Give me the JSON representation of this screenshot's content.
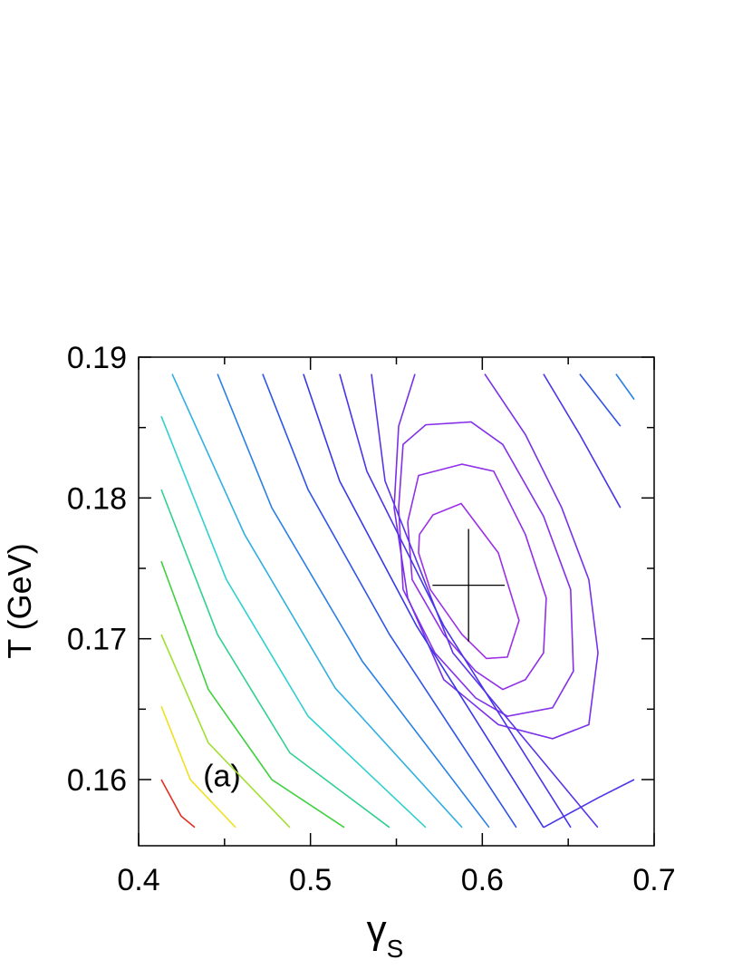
{
  "chart_data": {
    "type": "contour",
    "x_label": "γ",
    "x_label_subscript": "S",
    "y_label": "T (GeV)",
    "annotation": {
      "text": "(a)",
      "x": 0.4485,
      "y": 0.1603
    },
    "xlim": [
      0.4,
      0.7
    ],
    "ylim": [
      0.1553,
      0.19
    ],
    "xticks": [
      0.4,
      0.5,
      0.6,
      0.7
    ],
    "yticks": [
      0.16,
      0.17,
      0.18,
      0.19
    ],
    "xminor": [
      0.45,
      0.55,
      0.65
    ],
    "yminor": [
      0.165,
      0.175,
      0.185
    ],
    "best_fit": {
      "x": 0.592,
      "y": 0.1738,
      "x_err": 0.021,
      "y_err": 0.004,
      "color": "#000000"
    },
    "contours": [
      {
        "color": "#9b30e8",
        "x": [
          0.5634,
          0.5713,
          0.5877,
          0.6093,
          0.6214,
          0.6146,
          0.6024,
          0.5882,
          0.5697,
          0.5629,
          0.5634
        ],
        "y": [
          0.1774,
          0.1788,
          0.1796,
          0.1761,
          0.1713,
          0.1687,
          0.1686,
          0.1703,
          0.1735,
          0.1761,
          0.1774
        ]
      },
      {
        "color": "#9030e8",
        "x": [
          0.5566,
          0.5629,
          0.5882,
          0.6066,
          0.6251,
          0.6372,
          0.6356,
          0.6251,
          0.6119,
          0.5961,
          0.5776,
          0.5592,
          0.5566
        ],
        "y": [
          0.1783,
          0.1816,
          0.1824,
          0.1819,
          0.1774,
          0.1729,
          0.169,
          0.1671,
          0.1664,
          0.1677,
          0.1703,
          0.1742,
          0.1783
        ]
      },
      {
        "color": "#8530e8",
        "x": [
          0.5513,
          0.5539,
          0.5671,
          0.5935,
          0.6119,
          0.6356,
          0.6514,
          0.653,
          0.6409,
          0.6146,
          0.5961,
          0.5724,
          0.5539,
          0.5513
        ],
        "y": [
          0.1793,
          0.1838,
          0.1852,
          0.1854,
          0.1838,
          0.1787,
          0.1735,
          0.1677,
          0.1651,
          0.1645,
          0.1658,
          0.169,
          0.1735,
          0.1793
        ]
      },
      {
        "color": "#7a30e8",
        "x": [
          0.5608,
          0.5513,
          0.5487,
          0.5566,
          0.5776,
          0.6093,
          0.6409,
          0.662,
          0.6673,
          0.662,
          0.6462,
          0.6251,
          0.6014
        ],
        "y": [
          0.1888,
          0.1851,
          0.1793,
          0.1729,
          0.1671,
          0.1639,
          0.1629,
          0.1639,
          0.169,
          0.1742,
          0.1793,
          0.1845,
          0.1888
        ]
      },
      {
        "color": "#5a35e8",
        "x": [
          0.5355,
          0.5434,
          0.5829,
          0.6672
        ],
        "y": [
          0.1888,
          0.1812,
          0.169,
          0.1566
        ]
      },
      {
        "color": "#4a35e8",
        "x": [
          0.517,
          0.5328,
          0.5777,
          0.6515
        ],
        "y": [
          0.1888,
          0.1819,
          0.1709,
          0.1566
        ]
      },
      {
        "color": "#3838e8",
        "x": [
          0.4959,
          0.517,
          0.5618,
          0.6356
        ],
        "y": [
          0.1888,
          0.1812,
          0.1709,
          0.1566
        ]
      },
      {
        "color": "#2f55e6",
        "x": [
          0.4722,
          0.4986,
          0.546,
          0.6198
        ],
        "y": [
          0.1888,
          0.1806,
          0.1703,
          0.1566
        ]
      },
      {
        "color": "#2a80e4",
        "x": [
          0.4459,
          0.4775,
          0.5302,
          0.604
        ],
        "y": [
          0.1888,
          0.1793,
          0.1684,
          0.1566
        ]
      },
      {
        "color": "#30b0e0",
        "x": [
          0.4195,
          0.4617,
          0.5144,
          0.5882
        ],
        "y": [
          0.1888,
          0.1774,
          0.1665,
          0.1566
        ]
      },
      {
        "color": "#30d0d0",
        "x": [
          0.4132,
          0.4511,
          0.4986,
          0.5671
        ],
        "y": [
          0.1858,
          0.1742,
          0.1645,
          0.1566
        ]
      },
      {
        "color": "#30d090",
        "x": [
          0.4132,
          0.4459,
          0.488,
          0.546
        ],
        "y": [
          0.1806,
          0.1703,
          0.1619,
          0.1566
        ]
      },
      {
        "color": "#40d040",
        "x": [
          0.4132,
          0.4406,
          0.4775,
          0.5197
        ],
        "y": [
          0.1755,
          0.1664,
          0.16,
          0.1566
        ]
      },
      {
        "color": "#a0e030",
        "x": [
          0.4132,
          0.4406,
          0.488
        ],
        "y": [
          0.1703,
          0.1626,
          0.1566
        ]
      },
      {
        "color": "#f0e020",
        "x": [
          0.4132,
          0.4301,
          0.4564
        ],
        "y": [
          0.1652,
          0.16,
          0.1566
        ]
      },
      {
        "color": "#e03020",
        "x": [
          0.4132,
          0.4248,
          0.4327
        ],
        "y": [
          0.16,
          0.1574,
          0.1566
        ]
      },
      {
        "color": "#4a35e8",
        "x": [
          0.6356,
          0.6567,
          0.6804
        ],
        "y": [
          0.1888,
          0.1845,
          0.1793
        ]
      },
      {
        "color": "#2f55e6",
        "x": [
          0.6567,
          0.6804
        ],
        "y": [
          0.1888,
          0.1851
        ]
      },
      {
        "color": "#2a80e4",
        "x": [
          0.6778,
          0.6884
        ],
        "y": [
          0.1888,
          0.187
        ]
      },
      {
        "color": "#4a35e8",
        "x": [
          0.6356,
          0.6673,
          0.6884
        ],
        "y": [
          0.1566,
          0.1587,
          0.16
        ]
      }
    ]
  }
}
